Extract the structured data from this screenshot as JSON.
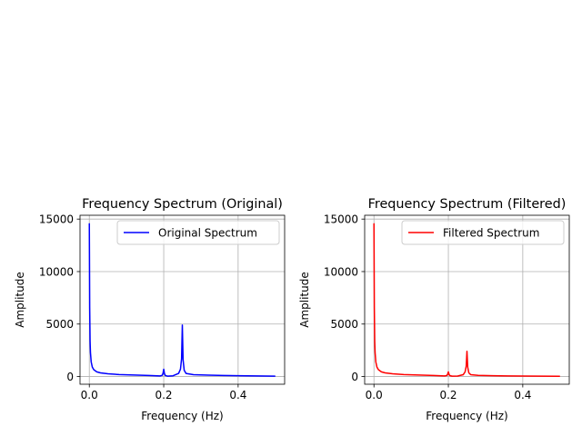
{
  "chart_data": [
    {
      "type": "line",
      "title": "Frequency Spectrum (Original)",
      "xlabel": "Frequency (Hz)",
      "ylabel": "Amplitude",
      "xlim": [
        -0.025,
        0.525
      ],
      "ylim": [
        -731,
        15362
      ],
      "xticks": [
        0.0,
        0.2,
        0.4
      ],
      "xtick_labels": [
        "0.0",
        "0.2",
        "0.4"
      ],
      "yticks": [
        0,
        5000,
        10000,
        15000
      ],
      "ytick_labels": [
        "0",
        "5000",
        "10000",
        "15000"
      ],
      "grid": true,
      "legend_position": "upper right",
      "series": [
        {
          "name": "Original Spectrum",
          "color": "#0000ff",
          "x": [
            0.0,
            0.001,
            0.002,
            0.003,
            0.005,
            0.008,
            0.012,
            0.02,
            0.03,
            0.05,
            0.08,
            0.12,
            0.16,
            0.19,
            0.196,
            0.198,
            0.2,
            0.202,
            0.204,
            0.21,
            0.225,
            0.24,
            0.245,
            0.248,
            0.25,
            0.252,
            0.255,
            0.26,
            0.28,
            0.32,
            0.36,
            0.4,
            0.45,
            0.5
          ],
          "y": [
            14600,
            6500,
            3400,
            2300,
            1400,
            900,
            650,
            450,
            350,
            260,
            190,
            140,
            100,
            60,
            120,
            300,
            700,
            280,
            110,
            40,
            70,
            300,
            700,
            1700,
            4900,
            1600,
            600,
            300,
            180,
            130,
            100,
            80,
            60,
            40
          ]
        }
      ]
    },
    {
      "type": "line",
      "title": "Frequency Spectrum (Filtered)",
      "xlabel": "Frequency (Hz)",
      "ylabel": "Amplitude",
      "xlim": [
        -0.025,
        0.525
      ],
      "ylim": [
        -731,
        15362
      ],
      "xticks": [
        0.0,
        0.2,
        0.4
      ],
      "xtick_labels": [
        "0.0",
        "0.2",
        "0.4"
      ],
      "yticks": [
        0,
        5000,
        10000,
        15000
      ],
      "ytick_labels": [
        "0",
        "5000",
        "10000",
        "15000"
      ],
      "grid": true,
      "legend_position": "upper right",
      "series": [
        {
          "name": "Filtered Spectrum",
          "color": "#ff0000",
          "x": [
            0.0,
            0.001,
            0.002,
            0.003,
            0.005,
            0.008,
            0.012,
            0.02,
            0.03,
            0.05,
            0.08,
            0.12,
            0.16,
            0.19,
            0.196,
            0.198,
            0.2,
            0.202,
            0.204,
            0.21,
            0.225,
            0.24,
            0.245,
            0.248,
            0.25,
            0.252,
            0.255,
            0.26,
            0.28,
            0.32,
            0.36,
            0.4,
            0.45,
            0.5
          ],
          "y": [
            14600,
            6500,
            3400,
            2300,
            1400,
            900,
            650,
            450,
            350,
            260,
            190,
            140,
            100,
            55,
            100,
            220,
            450,
            200,
            90,
            35,
            50,
            180,
            450,
            1000,
            2400,
            900,
            350,
            180,
            110,
            80,
            60,
            50,
            40,
            30
          ]
        }
      ]
    }
  ]
}
